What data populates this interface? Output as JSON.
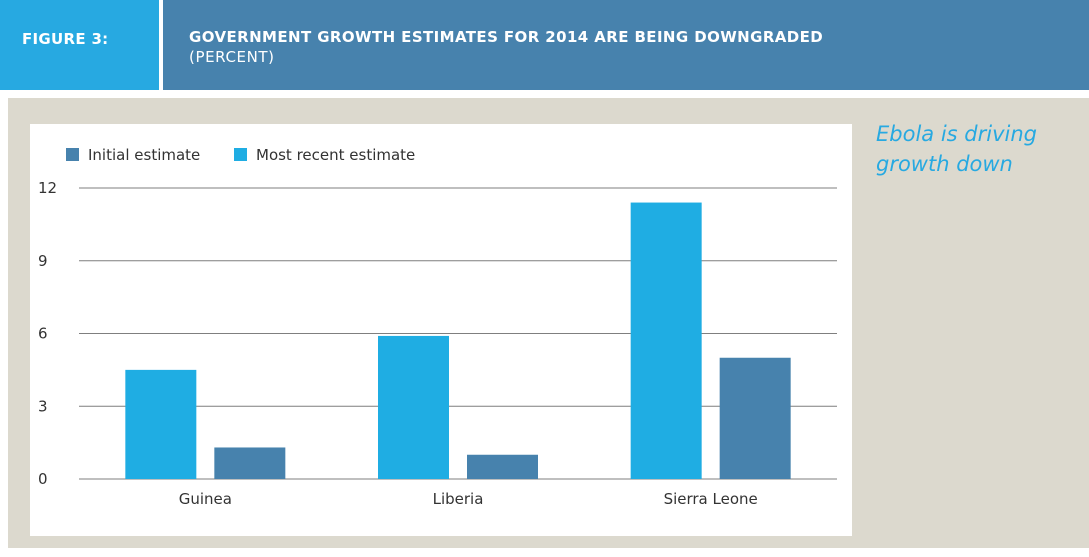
{
  "header": {
    "figure_label": "FIGURE 3:",
    "title": "GOVERNMENT GROWTH ESTIMATES FOR 2014 ARE BEING DOWNGRADED",
    "subtitle": "(PERCENT)"
  },
  "annotation": "Ebola is driving growth down",
  "colors": {
    "initial": "#4782ad",
    "recent": "#1fade3",
    "panel": "#dcd9ce",
    "grid": "#7f7f7f"
  },
  "chart_data": {
    "type": "bar",
    "categories": [
      "Guinea",
      "Liberia",
      "Sierra Leone"
    ],
    "series": [
      {
        "name": "Most recent estimate",
        "values": [
          4.5,
          5.9,
          11.4
        ]
      },
      {
        "name": "Initial estimate",
        "values": [
          1.3,
          1.0,
          5.0
        ]
      }
    ],
    "legend": [
      "Initial estimate",
      "Most recent estimate"
    ],
    "yticks": [
      0,
      3,
      6,
      9,
      12
    ],
    "ylim": [
      0,
      12
    ],
    "grid": true,
    "legend_position": "top-left"
  }
}
